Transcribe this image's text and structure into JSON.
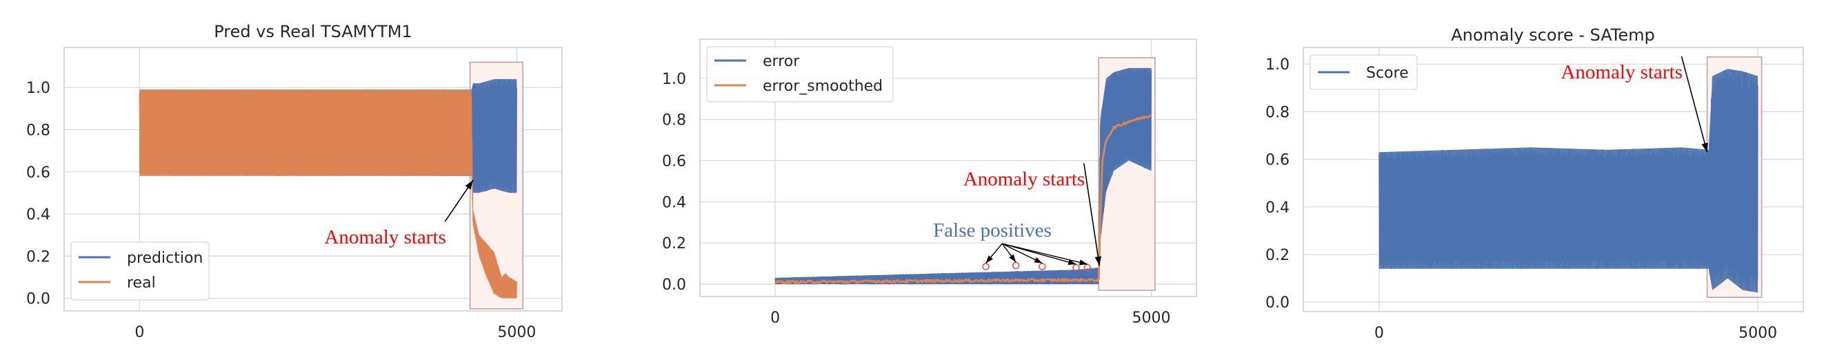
{
  "colors": {
    "blue": "#4c72b0",
    "orange": "#dd8452",
    "grid": "#d9d9d9",
    "axes_edge": "#cccccc",
    "anomaly_box_edge": "#b5a0a0",
    "anomaly_box_fill": "#fdf1ee",
    "annotation_red": "#ff0000",
    "fp_marker": "#e05555"
  },
  "chart_data": [
    {
      "type": "line",
      "title": "Pred vs Real TSAMYTM1",
      "xlabel": "",
      "ylabel": "",
      "xlim": [
        -1000,
        5600
      ],
      "ylim": [
        -0.06,
        1.19
      ],
      "x_ticks": [
        0,
        5000
      ],
      "x_tick_labels": [
        "0",
        "5000"
      ],
      "y_ticks": [
        0.0,
        0.2,
        0.4,
        0.6,
        0.8,
        1.0
      ],
      "y_tick_labels": [
        "0.0",
        "0.2",
        "0.4",
        "0.6",
        "0.8",
        "1.0"
      ],
      "grid": true,
      "legend_position": "lower-left",
      "series": [
        {
          "name": "prediction",
          "color": "#4c72b0",
          "description_points": {
            "x": [
              0,
              4400,
              4420,
              4500,
              4700,
              4900,
              5000
            ],
            "y_low": [
              0.59,
              0.58,
              0.5,
              0.5,
              0.52,
              0.5,
              0.5
            ],
            "y_high": [
              0.99,
              0.99,
              1.02,
              1.02,
              1.04,
              1.04,
              1.04
            ]
          }
        },
        {
          "name": "real",
          "color": "#dd8452",
          "description_points": {
            "x": [
              0,
              4400,
              4420,
              4500,
              4600,
              4700,
              4800,
              4850,
              4900,
              5000
            ],
            "y_low": [
              0.58,
              0.58,
              0.35,
              0.2,
              0.1,
              0.02,
              0.0,
              0.0,
              0.0,
              0.0
            ],
            "y_high": [
              0.99,
              0.99,
              0.42,
              0.3,
              0.26,
              0.22,
              0.1,
              0.12,
              0.1,
              0.08
            ]
          }
        }
      ],
      "anomaly_region": {
        "x_start": 4380,
        "x_end": 5080,
        "y_start": -0.05,
        "y_end": 1.12
      },
      "annotations": [
        {
          "text": "Anomaly starts",
          "point_x": 4420,
          "point_y": 0.56,
          "text_x": 2450,
          "text_y": 0.26
        }
      ]
    },
    {
      "type": "line",
      "title": "",
      "xlabel": "",
      "ylabel": "",
      "xlim": [
        -1000,
        5600
      ],
      "ylim": [
        -0.06,
        1.19
      ],
      "x_ticks": [
        0,
        5000
      ],
      "x_tick_labels": [
        "0",
        "5000"
      ],
      "y_ticks": [
        0.0,
        0.2,
        0.4,
        0.6,
        0.8,
        1.0
      ],
      "y_tick_labels": [
        "0.0",
        "0.2",
        "0.4",
        "0.6",
        "0.8",
        "1.0"
      ],
      "grid": true,
      "legend_position": "top-left",
      "series": [
        {
          "name": "error",
          "color": "#4c72b0",
          "description_points": {
            "x": [
              0,
              1000,
              2000,
              3000,
              4000,
              4300,
              4320,
              4400,
              4500,
              4700,
              5000
            ],
            "y_low": [
              0.0,
              0.0,
              0.0,
              0.0,
              0.0,
              0.0,
              0.2,
              0.45,
              0.55,
              0.6,
              0.55
            ],
            "y_high": [
              0.03,
              0.04,
              0.05,
              0.06,
              0.07,
              0.08,
              0.8,
              1.0,
              1.03,
              1.05,
              1.05
            ]
          }
        },
        {
          "name": "error_smoothed",
          "color": "#dd8452",
          "description_points": {
            "x": [
              0,
              1000,
              2000,
              3000,
              4000,
              4300,
              4320,
              4350,
              4400,
              4500,
              4700,
              4900,
              5000
            ],
            "y": [
              0.01,
              0.012,
              0.015,
              0.018,
              0.02,
              0.02,
              0.3,
              0.6,
              0.7,
              0.76,
              0.79,
              0.81,
              0.82
            ]
          }
        }
      ],
      "false_positive_points": {
        "x": [
          2800,
          3200,
          3550,
          4000,
          4150
        ],
        "y": [
          0.085,
          0.09,
          0.085,
          0.08,
          0.08
        ]
      },
      "anomaly_region": {
        "x_start": 4300,
        "x_end": 5050,
        "y_start": -0.03,
        "y_end": 1.1
      },
      "annotations": [
        {
          "text": "Anomaly starts",
          "point_x": 4310,
          "point_y": 0.09,
          "text_x": 2500,
          "text_y": 0.48
        },
        {
          "text": "False positives",
          "text_x": 2100,
          "text_y": 0.23
        }
      ]
    },
    {
      "type": "line",
      "title": "Anomaly score - SATemp",
      "xlabel": "",
      "ylabel": "",
      "xlim": [
        -1000,
        5600
      ],
      "ylim": [
        -0.04,
        1.07
      ],
      "x_ticks": [
        0,
        5000
      ],
      "x_tick_labels": [
        "0",
        "5000"
      ],
      "y_ticks": [
        0.0,
        0.2,
        0.4,
        0.6,
        0.8,
        1.0
      ],
      "y_tick_labels": [
        "0.0",
        "0.2",
        "0.4",
        "0.6",
        "0.8",
        "1.0"
      ],
      "grid": true,
      "legend_position": "top-left",
      "series": [
        {
          "name": "Score",
          "color": "#4c72b0",
          "description_points": {
            "x": [
              0,
              1000,
              2000,
              3000,
              4000,
              4350,
              4400,
              4600,
              4800,
              5000
            ],
            "y_low": [
              0.14,
              0.14,
              0.14,
              0.14,
              0.14,
              0.14,
              0.05,
              0.1,
              0.05,
              0.04
            ],
            "y_high": [
              0.63,
              0.64,
              0.65,
              0.64,
              0.65,
              0.64,
              0.95,
              0.98,
              0.97,
              0.95
            ]
          }
        }
      ],
      "anomaly_region": {
        "x_start": 4330,
        "x_end": 5050,
        "y_start": 0.02,
        "y_end": 1.03
      },
      "annotations": [
        {
          "text": "Anomaly starts",
          "point_x": 4330,
          "point_y": 0.63,
          "text_x": 2400,
          "text_y": 0.94
        }
      ]
    }
  ]
}
